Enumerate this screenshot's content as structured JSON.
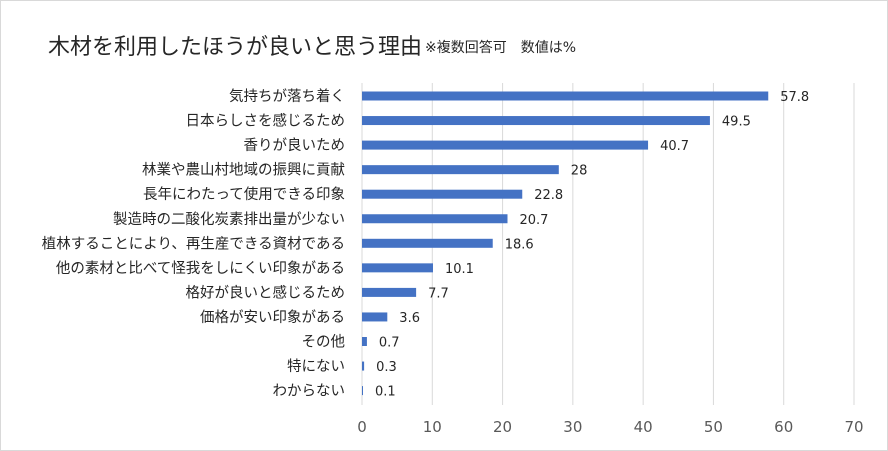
{
  "title": "木材を利用したほうが良いと思う理由",
  "subtitle": "※複数回答可　数値は%",
  "colors": {
    "bar": "#4472c4",
    "grid": "#d9d9d9",
    "text": "#262626",
    "tick": "#595959"
  },
  "chart_data": {
    "type": "bar",
    "orientation": "horizontal",
    "title": "木材を利用したほうが良いと思う理由",
    "subtitle": "※複数回答可　数値は%",
    "categories": [
      "気持ちが落ち着く",
      "日本らしさを感じるため",
      "香りが良いため",
      "林業や農山村地域の振興に貢献",
      "長年にわたって使用できる印象",
      "製造時の二酸化炭素排出量が少ない",
      "植林することにより、再生産できる資材である",
      "他の素材と比べて怪我をしにくい印象がある",
      "格好が良いと感じるため",
      "価格が安い印象がある",
      "その他",
      "特にない",
      "わからない"
    ],
    "values": [
      57.8,
      49.5,
      40.7,
      28,
      22.8,
      20.7,
      18.6,
      10.1,
      7.7,
      3.6,
      0.7,
      0.3,
      0.1
    ],
    "value_labels": [
      "57.8",
      "49.5",
      "40.7",
      "28",
      "22.8",
      "20.7",
      "18.6",
      "10.1",
      "7.7",
      "3.6",
      "0.7",
      "0.3",
      "0.1"
    ],
    "xlim": [
      0,
      70
    ],
    "xticks": [
      0,
      10,
      20,
      30,
      40,
      50,
      60,
      70
    ],
    "xtick_labels": [
      "0",
      "10",
      "20",
      "30",
      "40",
      "50",
      "60",
      "70"
    ],
    "grid": "vertical",
    "legend": "none"
  }
}
